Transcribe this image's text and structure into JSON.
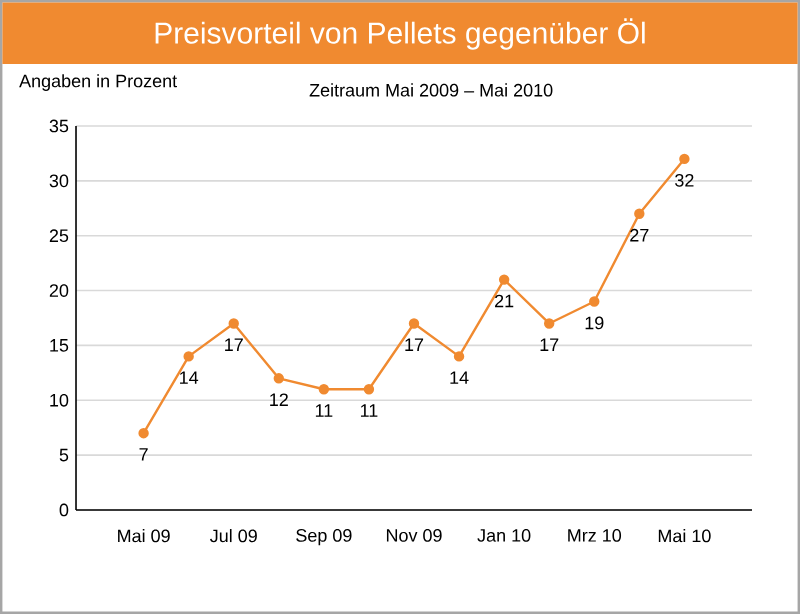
{
  "chart_data": {
    "type": "line",
    "title": "Preisvorteil von Pellets gegenüber Öl",
    "subtitle": "Zeitraum Mai 2009 – Mai 2010",
    "ylabel": "Angaben in Prozent",
    "categories": [
      "Mai 09",
      null,
      "Jul 09",
      null,
      "Sep 09",
      null,
      "Nov 09",
      null,
      "Jan 10",
      null,
      "Mrz 10",
      null,
      "Mai 10"
    ],
    "values": [
      7,
      14,
      17,
      12,
      11,
      11,
      17,
      14,
      21,
      17,
      19,
      27,
      32
    ],
    "color": "#f08a30",
    "marker": "circle",
    "data_labels": true,
    "grid": "y",
    "ylim": [
      0,
      35
    ],
    "yticks": [
      0,
      5,
      10,
      15,
      20,
      25,
      30,
      35
    ]
  }
}
